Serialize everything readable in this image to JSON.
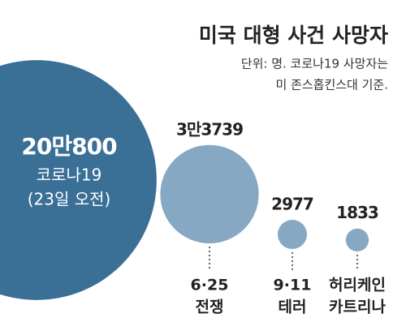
{
  "chart_data": {
    "type": "bubble",
    "title": "미국 대형 사건 사망자",
    "subtitle": [
      "단위: 명. 코로나19 사망자는",
      "미 존스홉킨스대 기준."
    ],
    "categories": [
      [
        "코로나19",
        "(23일 오전)"
      ],
      [
        "6·25",
        "전쟁"
      ],
      [
        "9·11",
        "테러"
      ],
      [
        "허리케인",
        "카트리나"
      ]
    ],
    "values": [
      200800,
      33739,
      2977,
      1833
    ],
    "value_labels": [
      "20만800",
      "3만3739",
      "2977",
      "1833"
    ],
    "colors": [
      "#3a6f96",
      "#86a8c2",
      "#86a8c2",
      "#86a8c2"
    ]
  }
}
